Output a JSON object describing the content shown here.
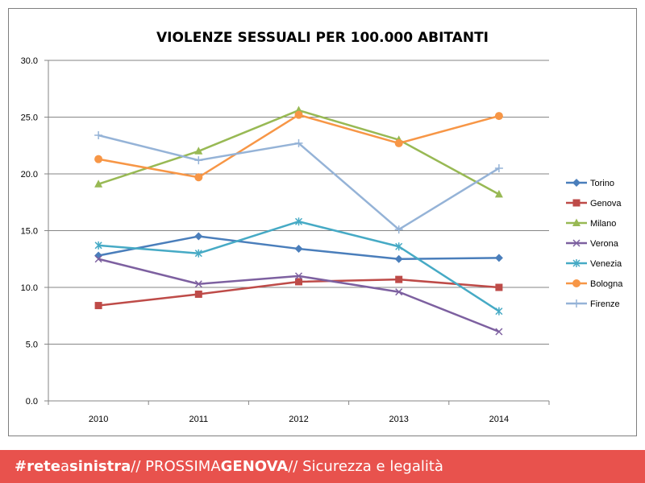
{
  "chart_data": {
    "type": "line",
    "title": "VIOLENZE SESSUALI PER 100.000 ABITANTI",
    "xlabel": "",
    "ylabel": "",
    "categories": [
      "2010",
      "2011",
      "2012",
      "2013",
      "2014"
    ],
    "ylim": [
      0,
      30
    ],
    "yticks": [
      "0.0",
      "5.0",
      "10.0",
      "15.0",
      "20.0",
      "25.0",
      "30.0"
    ],
    "grid": true,
    "legend_position": "right",
    "series": [
      {
        "name": "Torino",
        "color": "#4a7ebb",
        "marker": "diamond",
        "values": [
          12.8,
          14.5,
          13.4,
          12.5,
          12.6
        ]
      },
      {
        "name": "Genova",
        "color": "#be4b48",
        "marker": "square",
        "values": [
          8.4,
          9.4,
          10.5,
          10.7,
          10.0
        ]
      },
      {
        "name": "Milano",
        "color": "#98b954",
        "marker": "triangle",
        "values": [
          19.1,
          22.0,
          25.6,
          23.0,
          18.2
        ]
      },
      {
        "name": "Verona",
        "color": "#7d60a0",
        "marker": "x",
        "values": [
          12.5,
          10.3,
          11.0,
          9.6,
          6.1
        ]
      },
      {
        "name": "Venezia",
        "color": "#46aac5",
        "marker": "star",
        "values": [
          13.7,
          13.0,
          15.8,
          13.6,
          7.9
        ]
      },
      {
        "name": "Bologna",
        "color": "#f79646",
        "marker": "circle",
        "values": [
          21.3,
          19.7,
          25.2,
          22.7,
          25.1
        ]
      },
      {
        "name": "Firenze",
        "color": "#95b3d7",
        "marker": "plus",
        "values": [
          23.4,
          21.2,
          22.7,
          15.1,
          20.5
        ]
      }
    ]
  },
  "footer": {
    "hashtag": "#",
    "rete": "rete",
    "a": "a",
    "sinistra": "sinistra",
    "sep1": " // PROSSIMA",
    "genova": "GENOVA",
    "sep2": " // Sicurezza e legalità"
  }
}
